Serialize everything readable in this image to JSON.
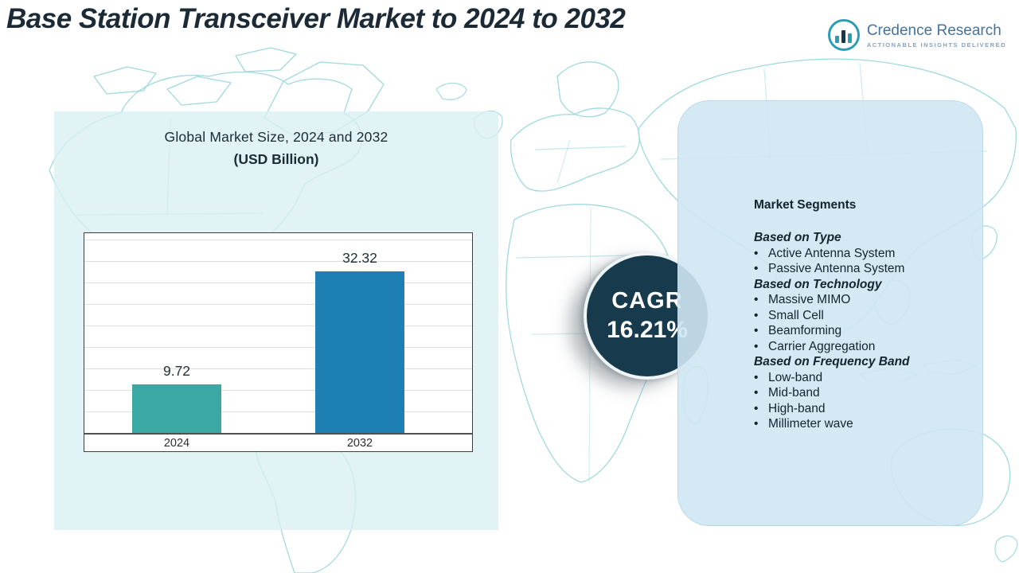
{
  "header": {
    "title": "Base Station Transceiver Market to 2024 to 2032"
  },
  "logo": {
    "name": "Credence Research",
    "tagline": "Actionable Insights Delivered"
  },
  "chart_panel": {
    "title": "Global Market Size, 2024 and 2032",
    "subtitle": "(USD Billion)"
  },
  "chart_data": {
    "type": "bar",
    "title": "Global Market Size, 2024 and 2032 (USD Billion)",
    "categories": [
      "2024",
      "2032"
    ],
    "values": [
      9.72,
      32.32
    ],
    "xlabel": "",
    "ylabel": "",
    "ylim": [
      0,
      40
    ],
    "grid": true,
    "legend": "none",
    "bar_colors": [
      "#3BA8A3",
      "#1E7FB2"
    ]
  },
  "cagr": {
    "label": "CAGR",
    "value": "16.21%"
  },
  "segments": {
    "title": "Market Segments",
    "groups": [
      {
        "heading": "Based on Type",
        "items": [
          "Active Antenna System",
          "Passive Antenna System"
        ]
      },
      {
        "heading": "Based on Technology",
        "items": [
          "Massive MIMO",
          "Small Cell",
          "Beamforming",
          "Carrier Aggregation"
        ]
      },
      {
        "heading": "Based on Frequency Band",
        "items": [
          "Low-band",
          "Mid-band",
          "High-band",
          "Millimeter wave"
        ]
      }
    ]
  },
  "colors": {
    "bar_2024": "#3BA8A3",
    "bar_2032": "#1E7FB2",
    "cagr_circle": "#173A4C",
    "left_panel_bg": "#D9EFF1",
    "right_panel_bg": "#CFE7F3",
    "map_line": "#9FD9DF",
    "title_text": "#1B2A35",
    "logo_blue": "#44749B"
  }
}
